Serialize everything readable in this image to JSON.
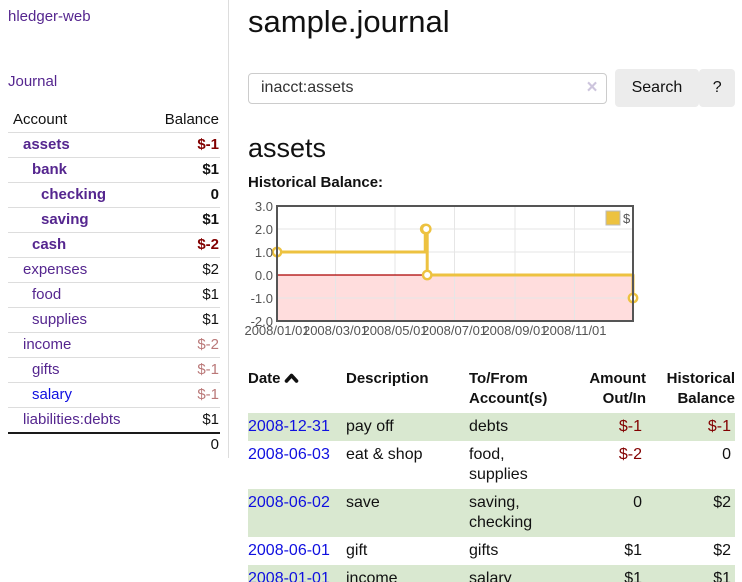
{
  "colors": {
    "link_purple": "#55268f",
    "link_blue": "#0f0fe0",
    "negative_strong": "#820000",
    "negative_muted": "#ba7878",
    "row_stripe_green": "#d9e8d0",
    "muted_text": "#545454",
    "border_light": "#dddddd",
    "button_bg": "#ececec",
    "chart_line": "#edc240",
    "chart_negative_fill": "#ffdddd",
    "chart_zero_line": "#aa0000",
    "chart_border": "#555555",
    "chart_grid": "#e6e6e6"
  },
  "sidebar": {
    "brand": "hledger-web",
    "nav_journal": "Journal",
    "accounts": {
      "col_account": "Account",
      "col_balance": "Balance",
      "rows": [
        {
          "name": "assets",
          "balance": "$-1",
          "level": 1,
          "bold": true,
          "visited": true
        },
        {
          "name": "bank",
          "balance": "$1",
          "level": 2,
          "bold": true,
          "visited": true
        },
        {
          "name": "checking",
          "balance": "0",
          "level": 3,
          "bold": true,
          "visited": true
        },
        {
          "name": "saving",
          "balance": "$1",
          "level": 3,
          "bold": true,
          "visited": true
        },
        {
          "name": "cash",
          "balance": "$-2",
          "level": 2,
          "bold": true,
          "visited": true
        },
        {
          "name": "expenses",
          "balance": "$2",
          "level": 1,
          "bold": false,
          "visited": true
        },
        {
          "name": "food",
          "balance": "$1",
          "level": 2,
          "bold": false,
          "visited": true
        },
        {
          "name": "supplies",
          "balance": "$1",
          "level": 2,
          "bold": false,
          "visited": true
        },
        {
          "name": "income",
          "balance": "$-2",
          "level": 1,
          "bold": false,
          "visited": true
        },
        {
          "name": "gifts",
          "balance": "$-1",
          "level": 2,
          "bold": false,
          "visited": true
        },
        {
          "name": "salary",
          "balance": "$-1",
          "level": 2,
          "bold": false,
          "visited": false
        },
        {
          "name": "liabilities:debts",
          "balance": "$1",
          "level": 1,
          "bold": false,
          "visited": true
        }
      ],
      "total": "0"
    }
  },
  "main": {
    "title": "sample.journal",
    "search": {
      "value": "inacct:assets",
      "clear": "×",
      "submit": "Search",
      "help": "?"
    },
    "account_heading": "assets",
    "section_label": "Historical Balance:",
    "register": {
      "headers": {
        "date": "Date",
        "description": "Description",
        "tofrom": "To/From Account(s)",
        "amount": "Amount Out/In",
        "balance": "Historical Balance"
      },
      "rows": [
        {
          "date": "2008-12-31",
          "description": "pay off",
          "accounts": "debts",
          "amount": "$-1",
          "balance": "$-1"
        },
        {
          "date": "2008-06-03",
          "description": "eat & shop",
          "accounts": "food, supplies",
          "amount": "$-2",
          "balance": "0"
        },
        {
          "date": "2008-06-02",
          "description": "save",
          "accounts": "saving, checking",
          "amount": "0",
          "balance": "$2"
        },
        {
          "date": "2008-06-01",
          "description": "gift",
          "accounts": "gifts",
          "amount": "$1",
          "balance": "$2"
        },
        {
          "date": "2008-01-01",
          "description": "income",
          "accounts": "salary",
          "amount": "$1",
          "balance": "$1"
        }
      ]
    }
  },
  "chart_data": {
    "type": "line",
    "step": true,
    "series": [
      {
        "name": "$",
        "points": [
          [
            "2008-01-01",
            1
          ],
          [
            "2008-06-01",
            2
          ],
          [
            "2008-06-02",
            2
          ],
          [
            "2008-06-03",
            0
          ],
          [
            "2008-12-31",
            -1
          ]
        ]
      }
    ],
    "xlim": [
      "2008-01-01",
      "2008-12-31"
    ],
    "ylim": [
      -2,
      3
    ],
    "x_tick_labels": [
      "2008/01/01",
      "2008/03/01",
      "2008/05/01",
      "2008/07/01",
      "2008/09/01",
      "2008/11/01"
    ],
    "y_tick_labels": [
      "3.0",
      "2.0",
      "1.0",
      "0.0",
      "-1.0",
      "-2.0"
    ],
    "grid": true,
    "legend_position": "top-right",
    "negative_region_shaded": true
  }
}
